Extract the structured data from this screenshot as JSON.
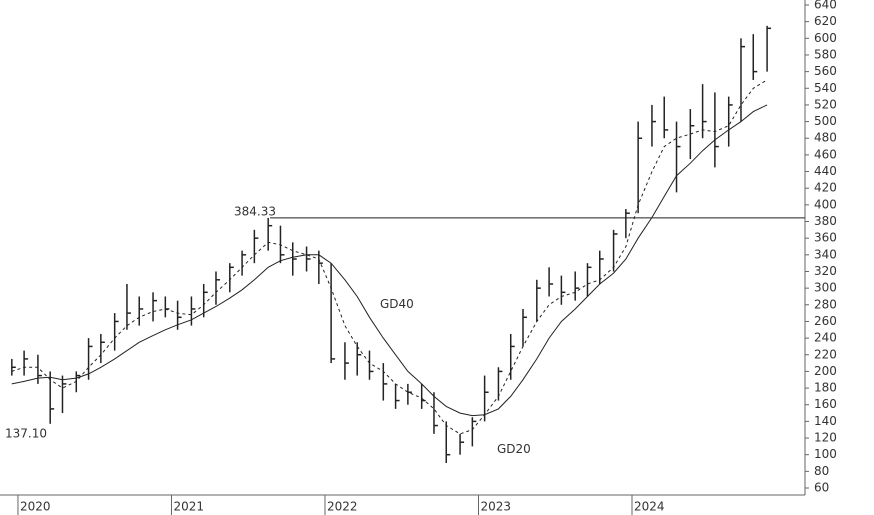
{
  "chart_data": {
    "type": "ohlc",
    "x": [
      2019.96,
      2020.04,
      2020.13,
      2020.21,
      2020.29,
      2020.38,
      2020.46,
      2020.54,
      2020.63,
      2020.71,
      2020.79,
      2020.88,
      2020.96,
      2021.04,
      2021.13,
      2021.21,
      2021.29,
      2021.38,
      2021.46,
      2021.54,
      2021.63,
      2021.71,
      2021.79,
      2021.88,
      2021.96,
      2022.04,
      2022.13,
      2022.21,
      2022.29,
      2022.38,
      2022.46,
      2022.54,
      2022.63,
      2022.71,
      2022.79,
      2022.88,
      2022.96,
      2023.04,
      2023.13,
      2023.21,
      2023.29,
      2023.38,
      2023.46,
      2023.54,
      2023.63,
      2023.71,
      2023.79,
      2023.88,
      2023.96,
      2024.04,
      2024.13,
      2024.21,
      2024.29,
      2024.38,
      2024.46,
      2024.54,
      2024.63,
      2024.71,
      2024.79,
      2024.88
    ],
    "high": [
      215,
      225,
      220,
      200,
      195,
      200,
      240,
      245,
      270,
      305,
      290,
      295,
      290,
      285,
      290,
      305,
      320,
      330,
      345,
      370,
      384.33,
      375,
      355,
      350,
      345,
      330,
      235,
      235,
      225,
      210,
      185,
      185,
      185,
      175,
      140,
      125,
      145,
      195,
      205,
      245,
      275,
      310,
      325,
      315,
      320,
      330,
      345,
      370,
      395,
      500,
      520,
      530,
      500,
      515,
      545,
      535,
      530,
      600,
      605,
      615
    ],
    "low": [
      195,
      195,
      185,
      137.1,
      150,
      175,
      190,
      210,
      225,
      250,
      255,
      260,
      265,
      250,
      255,
      265,
      280,
      295,
      315,
      330,
      345,
      330,
      315,
      320,
      305,
      210,
      190,
      195,
      190,
      165,
      155,
      160,
      155,
      125,
      90,
      100,
      110,
      140,
      165,
      190,
      230,
      260,
      290,
      280,
      285,
      290,
      305,
      320,
      360,
      390,
      470,
      480,
      415,
      455,
      480,
      445,
      470,
      500,
      550,
      560
    ],
    "close": [
      205,
      215,
      195,
      155,
      185,
      195,
      230,
      235,
      260,
      270,
      275,
      285,
      275,
      265,
      275,
      295,
      310,
      325,
      340,
      360,
      375,
      340,
      335,
      335,
      330,
      215,
      210,
      220,
      200,
      185,
      165,
      175,
      165,
      135,
      100,
      115,
      140,
      175,
      200,
      230,
      265,
      300,
      305,
      295,
      300,
      325,
      335,
      365,
      390,
      480,
      500,
      490,
      470,
      495,
      500,
      470,
      520,
      590,
      560,
      612
    ],
    "color": "#222222",
    "series": [
      {
        "name": "GD20",
        "color": "#222222",
        "dash": true,
        "values": [
          200,
          205,
          205,
          190,
          180,
          188,
          205,
          220,
          240,
          255,
          265,
          272,
          275,
          270,
          268,
          280,
          295,
          310,
          325,
          340,
          355,
          352,
          345,
          340,
          335,
          300,
          255,
          230,
          210,
          200,
          185,
          175,
          168,
          155,
          135,
          125,
          130,
          148,
          170,
          200,
          230,
          260,
          280,
          290,
          295,
          305,
          310,
          325,
          350,
          400,
          440,
          470,
          480,
          485,
          490,
          488,
          495,
          520,
          540,
          550
        ]
      },
      {
        "name": "GD40",
        "color": "#222222",
        "dash": false,
        "values": [
          185,
          188,
          192,
          193,
          190,
          192,
          197,
          205,
          215,
          225,
          235,
          243,
          250,
          256,
          262,
          270,
          278,
          288,
          298,
          310,
          325,
          333,
          337,
          340,
          340,
          330,
          310,
          290,
          265,
          240,
          220,
          200,
          185,
          170,
          158,
          150,
          147,
          148,
          155,
          170,
          190,
          215,
          240,
          260,
          275,
          290,
          305,
          318,
          335,
          360,
          385,
          410,
          435,
          450,
          465,
          478,
          490,
          500,
          512,
          520
        ]
      }
    ],
    "hline": {
      "value": 384.33,
      "label": "384.33"
    },
    "low_label": {
      "value": 137.1,
      "label": "137.10"
    },
    "xlim": [
      2019.883,
      2025.127
    ],
    "xticks": [
      2020,
      2021,
      2022,
      2023,
      2024
    ],
    "ylim": [
      51.6,
      646
    ],
    "yticks": [
      60,
      80,
      100,
      120,
      140,
      160,
      180,
      200,
      220,
      240,
      260,
      280,
      300,
      320,
      340,
      360,
      380,
      400,
      420,
      440,
      460,
      480,
      500,
      520,
      540,
      560,
      580,
      600,
      620,
      640
    ]
  }
}
